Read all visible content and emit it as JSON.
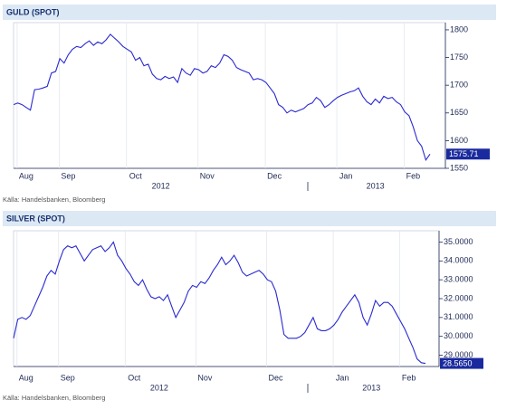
{
  "chart_data": [
    {
      "type": "line",
      "title": "GULD (SPOT)",
      "source": "Källa: Handelsbanken, Bloomberg",
      "categories": [
        null,
        null,
        null,
        "Aug",
        null,
        null,
        null,
        null,
        null,
        null,
        null,
        null,
        null,
        "Sep",
        null,
        null,
        null,
        null,
        null,
        null,
        null,
        null,
        null,
        null,
        null,
        null,
        null,
        null,
        null,
        "Oct",
        null,
        null,
        null,
        null,
        null,
        null,
        null,
        null,
        null,
        null,
        null,
        null,
        null,
        null,
        null,
        null,
        "Nov",
        null,
        null,
        null,
        null,
        null,
        null,
        null,
        null,
        null,
        null,
        null,
        null,
        null,
        null,
        null,
        "Dec",
        null,
        null,
        null,
        null,
        null,
        null,
        null,
        null,
        null,
        null,
        null,
        null,
        null,
        null,
        null,
        null,
        "Jan",
        null,
        null,
        null,
        null,
        null,
        null,
        null,
        null,
        null,
        null,
        null,
        null,
        null,
        null,
        null,
        "Feb",
        null,
        null,
        null,
        null
      ],
      "year_categories": [
        null,
        null,
        null,
        null,
        null,
        null,
        null,
        null,
        null,
        null,
        null,
        null,
        null,
        null,
        null,
        null,
        null,
        null,
        null,
        null,
        null,
        null,
        null,
        null,
        null,
        null,
        null,
        null,
        null,
        null,
        null,
        null,
        null,
        null,
        null,
        "2012",
        null,
        null,
        null,
        null,
        null,
        null,
        null,
        null,
        null,
        null,
        null,
        null,
        null,
        null,
        null,
        null,
        null,
        null,
        null,
        null,
        null,
        null,
        null,
        null,
        null,
        null,
        null,
        null,
        null,
        null,
        null,
        null,
        null,
        null,
        null,
        null,
        null,
        null,
        null,
        null,
        null,
        null,
        null,
        null,
        null,
        null,
        null,
        null,
        null,
        null,
        "2013",
        null,
        null,
        null,
        null,
        null,
        null,
        null,
        null,
        null,
        null,
        null,
        null,
        null
      ],
      "series": [
        {
          "name": "GULD (SPOT)",
          "color": "#2a2ad0",
          "values": [
            1665,
            1668,
            1665,
            1660,
            1655,
            1692,
            1693,
            1695,
            1698,
            1722,
            1725,
            1748,
            1740,
            1755,
            1765,
            1770,
            1768,
            1775,
            1780,
            1772,
            1778,
            1775,
            1782,
            1792,
            1785,
            1778,
            1770,
            1765,
            1760,
            1745,
            1750,
            1735,
            1738,
            1720,
            1712,
            1710,
            1716,
            1712,
            1715,
            1705,
            1730,
            1722,
            1718,
            1730,
            1728,
            1722,
            1725,
            1735,
            1732,
            1740,
            1755,
            1752,
            1745,
            1732,
            1728,
            1725,
            1722,
            1710,
            1712,
            1710,
            1705,
            1695,
            1685,
            1665,
            1660,
            1650,
            1655,
            1652,
            1655,
            1658,
            1665,
            1668,
            1678,
            1672,
            1660,
            1665,
            1672,
            1678,
            1682,
            1685,
            1688,
            1690,
            1695,
            1680,
            1670,
            1665,
            1675,
            1668,
            1680,
            1676,
            1678,
            1670,
            1665,
            1652,
            1645,
            1625,
            1600,
            1590,
            1565,
            1575.71
          ]
        }
      ],
      "ylim": [
        1550,
        1813
      ],
      "yticks": [
        1550,
        1600,
        1650,
        1700,
        1750,
        1800
      ],
      "label_color": "#1a2a9e"
    },
    {
      "type": "line",
      "title": "SILVER (SPOT)",
      "source": "Källa: Handelsbanken, Bloomberg",
      "categories": [
        null,
        null,
        null,
        "Aug",
        null,
        null,
        null,
        null,
        null,
        null,
        null,
        null,
        null,
        "Sep",
        null,
        null,
        null,
        null,
        null,
        null,
        null,
        null,
        null,
        null,
        null,
        null,
        null,
        null,
        null,
        "Oct",
        null,
        null,
        null,
        null,
        null,
        null,
        null,
        null,
        null,
        null,
        null,
        null,
        null,
        null,
        null,
        null,
        "Nov",
        null,
        null,
        null,
        null,
        null,
        null,
        null,
        null,
        null,
        null,
        null,
        null,
        null,
        null,
        null,
        null,
        "Dec",
        null,
        null,
        null,
        null,
        null,
        null,
        null,
        null,
        null,
        null,
        null,
        null,
        null,
        null,
        null,
        "Jan",
        null,
        null,
        null,
        null,
        null,
        null,
        null,
        null,
        null,
        null,
        null,
        null,
        null,
        null,
        null,
        "Feb",
        null,
        null,
        null,
        null
      ],
      "year_categories": [
        null,
        null,
        null,
        null,
        null,
        null,
        null,
        null,
        null,
        null,
        null,
        null,
        null,
        null,
        null,
        null,
        null,
        null,
        null,
        null,
        null,
        null,
        null,
        null,
        null,
        null,
        null,
        null,
        null,
        null,
        null,
        null,
        null,
        null,
        null,
        "2012",
        null,
        null,
        null,
        null,
        null,
        null,
        null,
        null,
        null,
        null,
        null,
        null,
        null,
        null,
        null,
        null,
        null,
        null,
        null,
        null,
        null,
        null,
        null,
        null,
        null,
        null,
        null,
        null,
        null,
        null,
        null,
        null,
        null,
        null,
        null,
        null,
        null,
        null,
        null,
        null,
        null,
        null,
        null,
        null,
        null,
        null,
        null,
        null,
        null,
        null,
        "2013",
        null,
        null,
        null,
        null,
        null,
        null,
        null,
        null,
        null,
        null,
        null,
        null,
        null
      ],
      "series": [
        {
          "name": "SILVER (SPOT)",
          "color": "#2a2ad0",
          "values": [
            29.9,
            30.9,
            31.0,
            30.9,
            31.1,
            31.6,
            32.1,
            32.6,
            33.2,
            33.5,
            33.3,
            34.0,
            34.6,
            34.8,
            34.7,
            34.8,
            34.4,
            34.0,
            34.3,
            34.6,
            34.7,
            34.8,
            34.5,
            34.7,
            35.0,
            34.3,
            34.0,
            33.6,
            33.3,
            32.9,
            32.7,
            33.0,
            32.5,
            32.1,
            32.0,
            32.1,
            31.9,
            32.2,
            31.6,
            31.0,
            31.4,
            31.8,
            32.4,
            32.7,
            32.6,
            32.9,
            32.8,
            33.1,
            33.5,
            33.8,
            34.2,
            33.8,
            34.0,
            34.3,
            33.9,
            33.4,
            33.2,
            33.3,
            33.4,
            33.5,
            33.3,
            33.0,
            32.9,
            32.4,
            31.4,
            30.1,
            29.9,
            29.9,
            29.9,
            30.0,
            30.2,
            30.6,
            31.0,
            30.4,
            30.3,
            30.3,
            30.4,
            30.6,
            30.9,
            31.3,
            31.6,
            31.9,
            32.2,
            31.8,
            31.0,
            30.6,
            31.2,
            31.9,
            31.6,
            31.8,
            31.8,
            31.6,
            31.2,
            30.8,
            30.4,
            29.9,
            29.4,
            28.8,
            28.6,
            28.565
          ],
          "value_labels": [
            null,
            null,
            null,
            null,
            null,
            null,
            null,
            null,
            null,
            null,
            null,
            null,
            null,
            null,
            null,
            null,
            null,
            null,
            null,
            null,
            null,
            null,
            null,
            null,
            null,
            null,
            null,
            null,
            null,
            null,
            null,
            null,
            null,
            null,
            null,
            null,
            null,
            null,
            null,
            null,
            null,
            null,
            null,
            null,
            null,
            null,
            null,
            null,
            null,
            null,
            null,
            null,
            null,
            null,
            null,
            null,
            null,
            null,
            null,
            null,
            null,
            null,
            null,
            null,
            null,
            null,
            null,
            null,
            null,
            null,
            null,
            null,
            null,
            null,
            null,
            null,
            null,
            null,
            null,
            null,
            null,
            null,
            null,
            null,
            null,
            null,
            null,
            null,
            null,
            null,
            null,
            null,
            null,
            null,
            null,
            null,
            null,
            null,
            null,
            "28.5650"
          ]
        }
      ],
      "ylim": [
        28.4,
        35.6
      ],
      "yticks": [
        {
          "value": 29,
          "label": "29.0000"
        },
        {
          "value": 30,
          "label": "30.0000"
        },
        {
          "value": 31,
          "label": "31.0000"
        },
        {
          "value": 32,
          "label": "32.0000"
        },
        {
          "value": 33,
          "label": "33.0000"
        },
        {
          "value": 34,
          "label": "34.0000"
        },
        {
          "value": 35,
          "label": "35.0000"
        }
      ],
      "label_color": "#1a2a9e"
    }
  ]
}
